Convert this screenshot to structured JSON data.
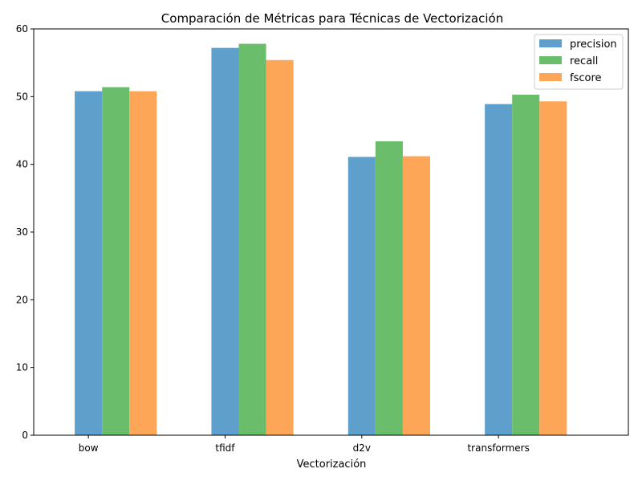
{
  "chart_data": {
    "type": "bar",
    "title": "Comparación de Métricas para Técnicas de Vectorización",
    "xlabel": "Vectorización",
    "ylabel": "",
    "categories": [
      "bow",
      "tfidf",
      "d2v",
      "transformers"
    ],
    "series": [
      {
        "name": "precision",
        "values": [
          50.8,
          57.2,
          41.1,
          48.9
        ],
        "color": "#5f9fcc"
      },
      {
        "name": "recall",
        "values": [
          51.4,
          57.8,
          43.4,
          50.3
        ],
        "color": "#6abd6a"
      },
      {
        "name": "fscore",
        "values": [
          50.8,
          55.4,
          41.2,
          49.3
        ],
        "color": "#fea657"
      }
    ],
    "ylim": [
      0,
      60
    ],
    "yticks": [
      "0",
      "10",
      "20",
      "30",
      "40",
      "50",
      "60"
    ],
    "grid": false,
    "legend_position": "top-right"
  }
}
